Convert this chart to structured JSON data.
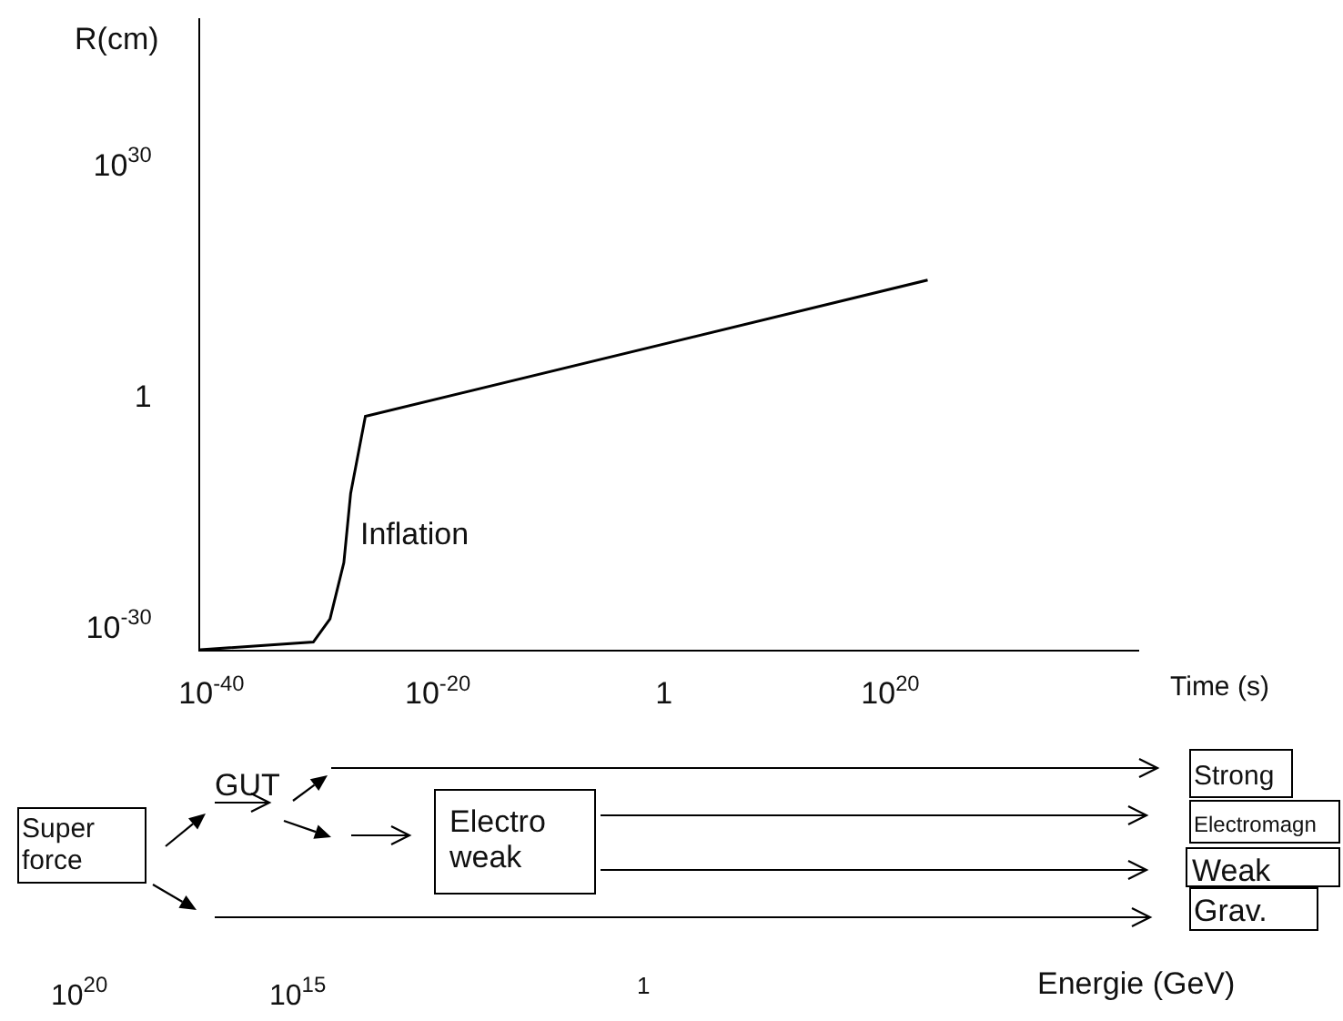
{
  "chart_data": {
    "type": "line",
    "xlabel": "Time (s)",
    "ylabel": "R(cm)",
    "log": "xy",
    "xlim": [
      1e-41,
      1e+42
    ],
    "ylim": [
      1e-33,
      1e+49
    ],
    "xticks": [
      {
        "value": 1e-40,
        "label": "10$^{-40}$"
      },
      {
        "value": 1e-20,
        "label": "10$^{-20}$"
      },
      1,
      {
        "value": 1e+20,
        "label": "10$^{20}$"
      }
    ],
    "yticks": [
      {
        "value": 1e-30,
        "label": "10$^{-30}$"
      },
      1,
      {
        "value": 1e+30,
        "label": "10$^{30}$"
      }
    ],
    "x": [
      1e-41,
      1e-31,
      3e-30,
      5e-29,
      2e-28,
      4e-27,
      2e+23
    ],
    "series": [
      {
        "color": "#000000",
        "values": [
          1e-33,
          1e-32,
          1e-29,
          2e-22,
          2e-13,
          0.002,
          1000000000000000.0
        ]
      }
    ],
    "annotations": [
      {
        "text": "Inflation",
        "x": 6e-28,
        "y": 1e-18
      },
      "GUT",
      "Super\nforce",
      "Electro\nweak",
      "Strong",
      "Electromagn",
      "Weak",
      "Grav.",
      "Energie (GeV)",
      "10$^{20}$",
      "10$^{15}$",
      "1"
    ]
  }
}
